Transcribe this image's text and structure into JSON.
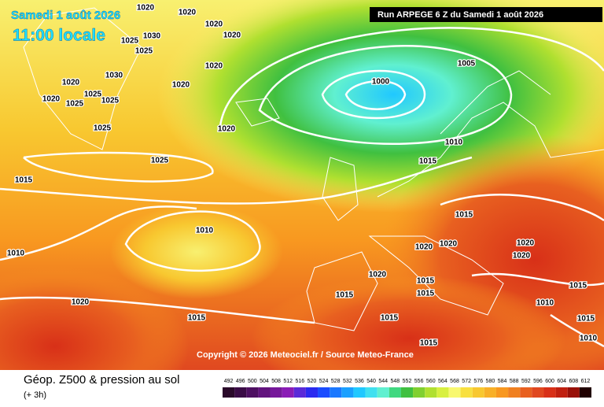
{
  "header": {
    "date": "Samedi 1 août 2026",
    "local_time": "11:00 locale",
    "run": "Run ARPEGE 6 Z du Samedi 1 août 2026"
  },
  "copyright": "Copyright © 2026 Meteociel.fr / Source Meteo-France",
  "footer": {
    "title": "Géop. Z500 & pression au sol",
    "step": "(+ 3h)"
  },
  "isobar_labels": [
    "1020",
    "1020",
    "1020",
    "1020",
    "1025",
    "1030",
    "1025",
    "1030",
    "1020",
    "1020",
    "1020",
    "1020",
    "1025",
    "1025",
    "1025",
    "1025",
    "1000",
    "1005",
    "1010",
    "1015",
    "1020",
    "1025",
    "1015",
    "1010",
    "1010",
    "1015",
    "1020",
    "1020",
    "1020",
    "1020",
    "1020",
    "1015",
    "1015",
    "1015",
    "1015",
    "1015",
    "1020",
    "1010",
    "1015",
    "1015",
    "1010",
    "1015"
  ],
  "legend": {
    "labels": [
      492,
      496,
      500,
      504,
      508,
      512,
      516,
      520,
      524,
      528,
      532,
      536,
      540,
      544,
      548,
      552,
      556,
      560,
      564,
      568,
      572,
      576,
      580,
      584,
      588,
      592,
      596,
      600,
      604,
      608,
      612
    ],
    "colors": [
      "#2a0a2a",
      "#3a0c46",
      "#4e1062",
      "#62147e",
      "#76189a",
      "#8a1cb6",
      "#5a2ad8",
      "#2a2af0",
      "#1a4cff",
      "#1a78ff",
      "#1aa0ff",
      "#20c8ff",
      "#40e0f0",
      "#60f0d0",
      "#40d880",
      "#40c040",
      "#80d030",
      "#b0e030",
      "#d8f040",
      "#f8f870",
      "#f8e040",
      "#f8c830",
      "#f8b028",
      "#f89820",
      "#f08020",
      "#e86020",
      "#e04820",
      "#d83018",
      "#c02010",
      "#981008",
      "#200000"
    ]
  }
}
